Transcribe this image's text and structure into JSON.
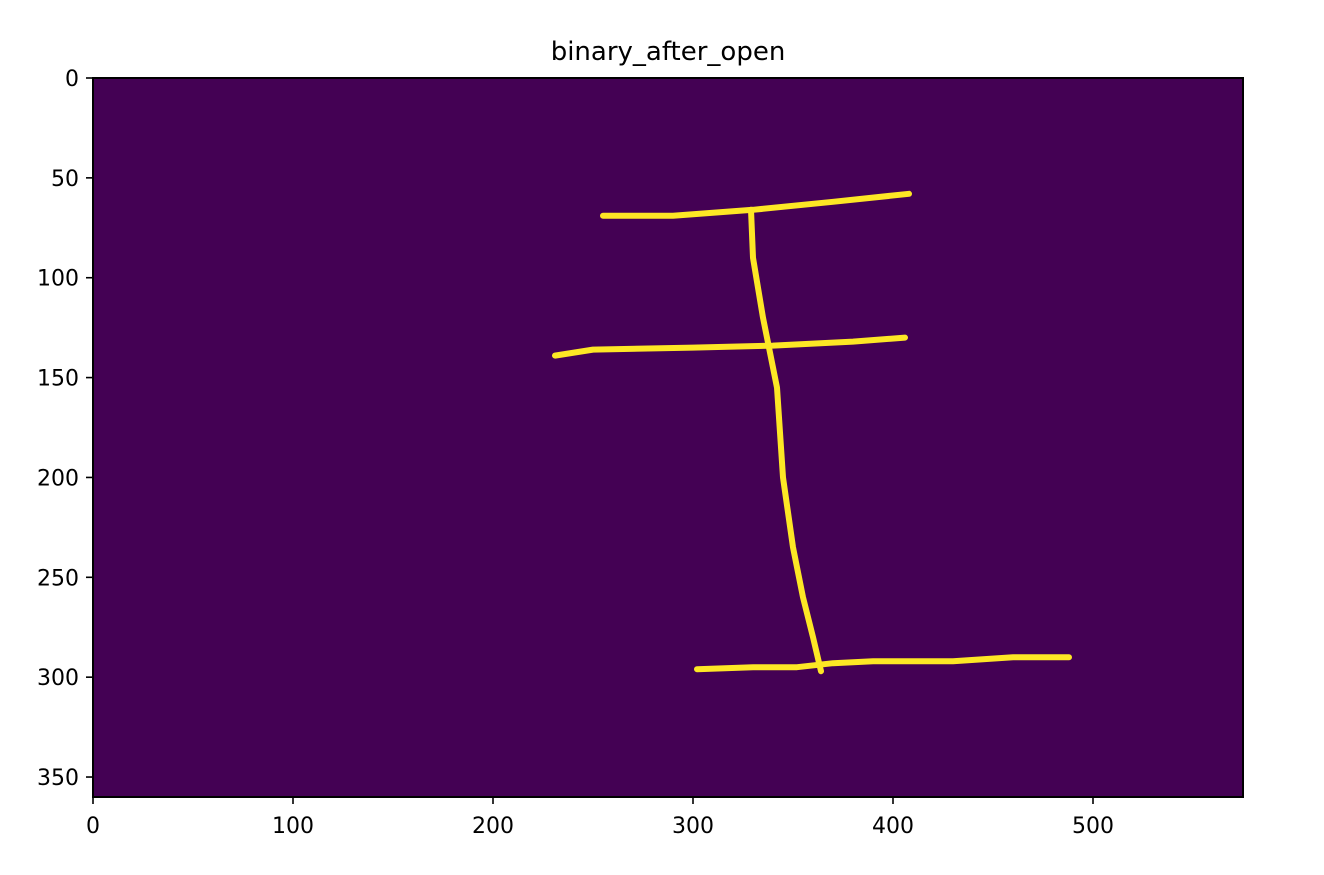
{
  "chart_data": {
    "type": "image",
    "title": "binary_after_open",
    "xlabel": "",
    "ylabel": "",
    "xlim": [
      0,
      575
    ],
    "ylim": [
      360,
      0
    ],
    "grid": false,
    "x_ticks": [
      0,
      100,
      200,
      300,
      400,
      500
    ],
    "y_ticks": [
      0,
      50,
      100,
      150,
      200,
      250,
      300,
      350
    ],
    "colors": {
      "background": "#440154",
      "foreground": "#fde725",
      "axes": "#000000"
    },
    "strokes": [
      {
        "name": "top-horizontal-stroke",
        "points": [
          [
            255,
            69
          ],
          [
            290,
            69
          ],
          [
            330,
            66
          ],
          [
            370,
            62
          ],
          [
            408,
            58
          ]
        ]
      },
      {
        "name": "middle-horizontal-stroke",
        "points": [
          [
            231,
            139
          ],
          [
            250,
            136
          ],
          [
            300,
            135
          ],
          [
            340,
            134
          ],
          [
            380,
            132
          ],
          [
            406,
            130
          ]
        ]
      },
      {
        "name": "vertical-stroke",
        "points": [
          [
            329,
            66
          ],
          [
            330,
            90
          ],
          [
            335,
            120
          ],
          [
            338,
            135
          ],
          [
            342,
            155
          ],
          [
            345,
            200
          ],
          [
            350,
            235
          ],
          [
            355,
            260
          ],
          [
            360,
            280
          ],
          [
            364,
            297
          ]
        ]
      },
      {
        "name": "bottom-horizontal-stroke",
        "points": [
          [
            302,
            296
          ],
          [
            330,
            295
          ],
          [
            352,
            295
          ],
          [
            370,
            293
          ],
          [
            390,
            292
          ],
          [
            430,
            292
          ],
          [
            460,
            290
          ],
          [
            488,
            290
          ]
        ]
      }
    ]
  }
}
